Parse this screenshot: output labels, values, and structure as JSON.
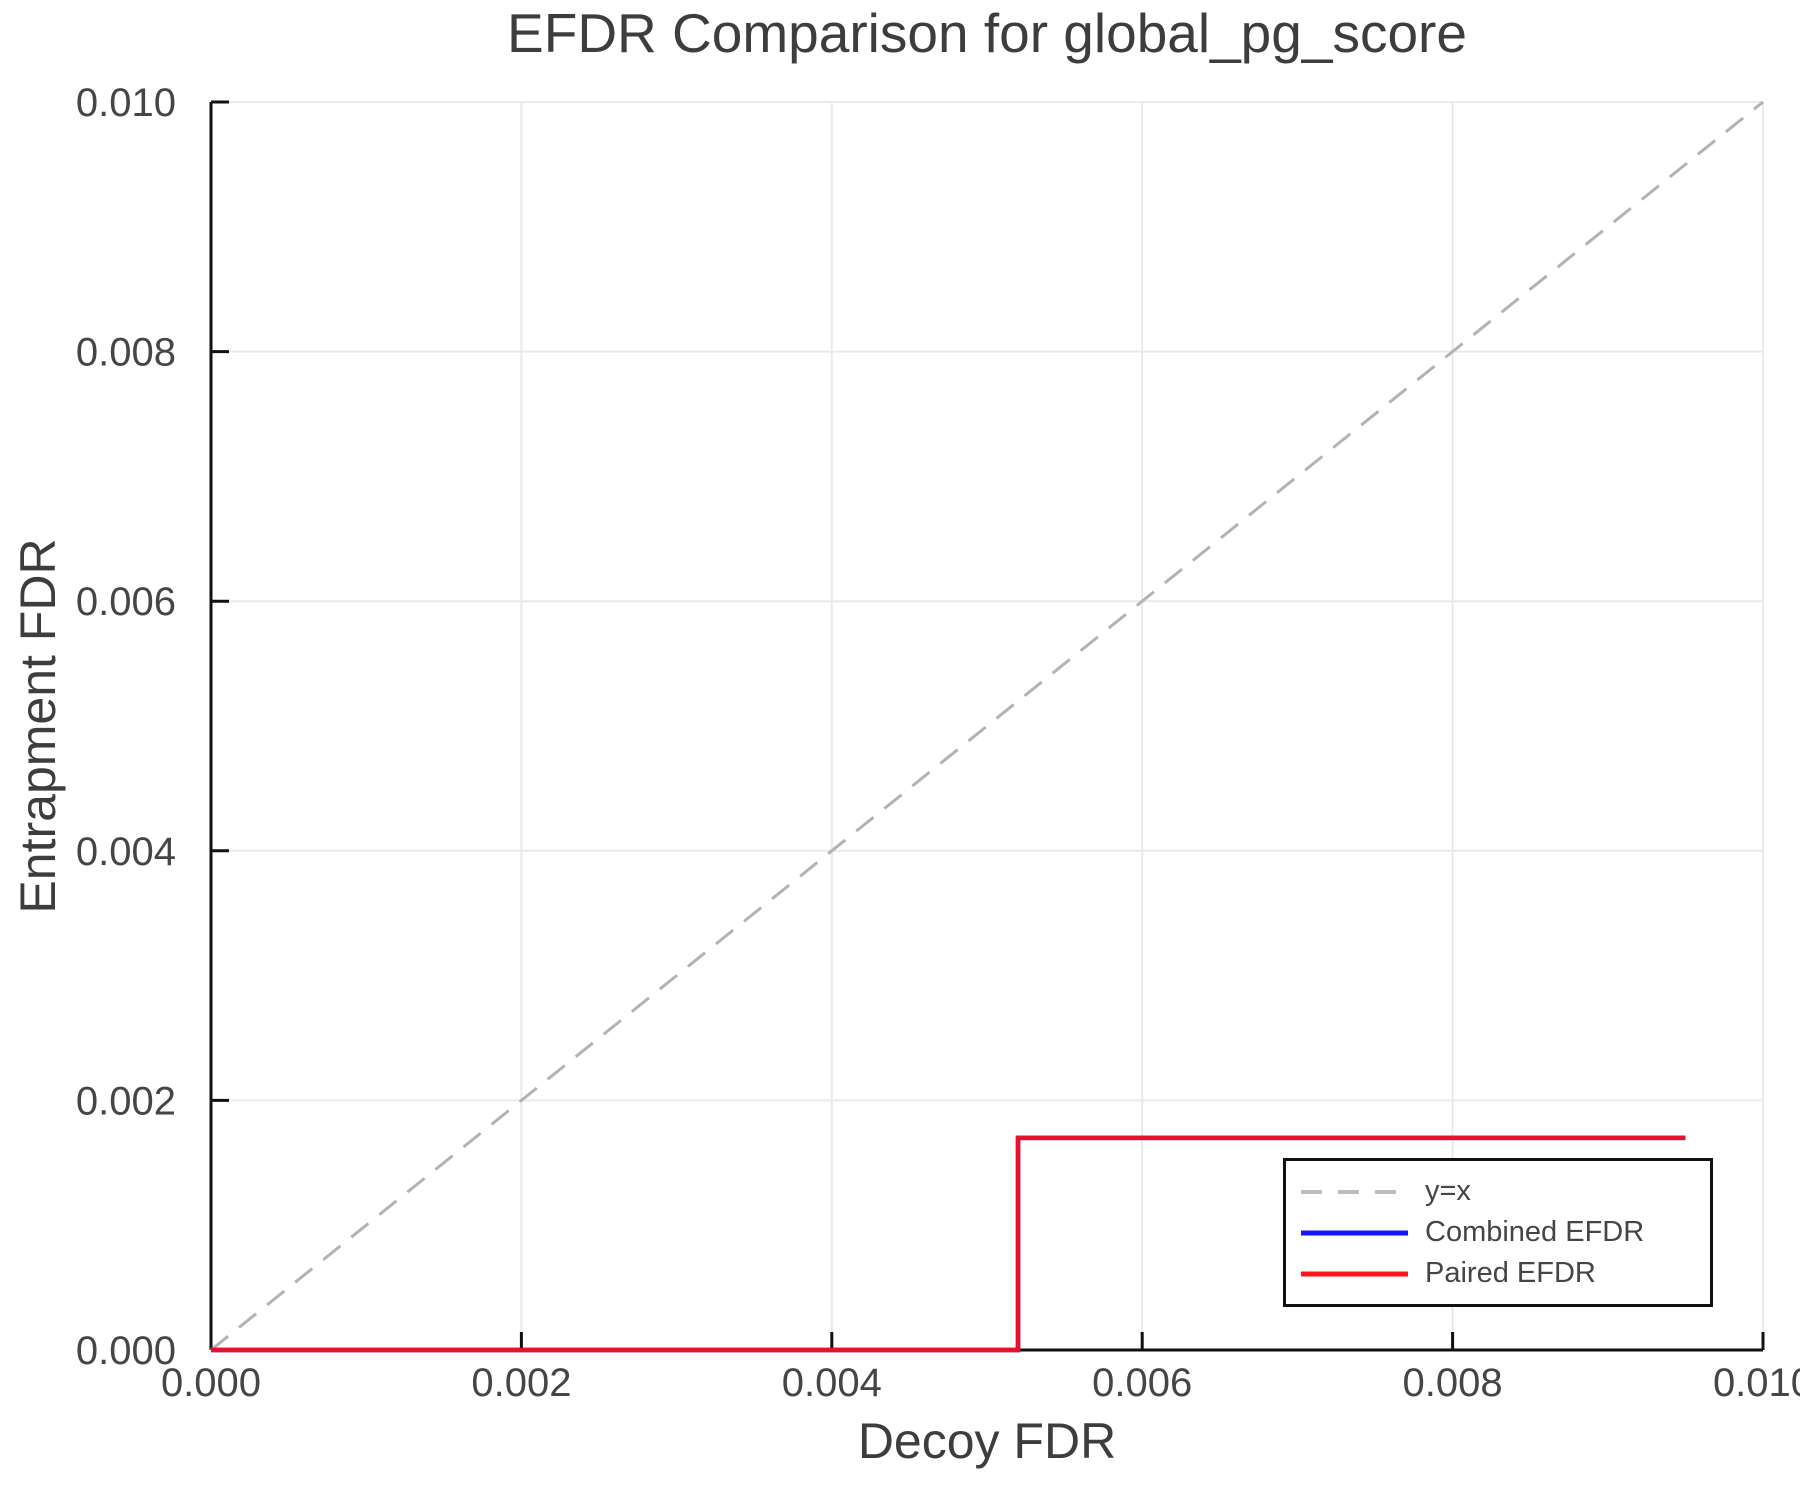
{
  "colors": {
    "background": "#ffffff",
    "spine": "#111111",
    "grid": "#eaeaea",
    "tick_text": "#454545",
    "title_text": "#3d3d3d",
    "legend_border": "#111111"
  },
  "legend": {
    "position": "lower right"
  },
  "chart_data": {
    "type": "line",
    "title": "EFDR Comparison for global_pg_score",
    "xlabel": "Decoy FDR",
    "ylabel": "Entrapment FDR",
    "xlim": [
      0.0,
      0.01
    ],
    "ylim": [
      0.0,
      0.01
    ],
    "xticks": [
      0.0,
      0.002,
      0.004,
      0.006,
      0.008,
      0.01
    ],
    "xtick_labels": [
      "0.000",
      "0.002",
      "0.004",
      "0.006",
      "0.008",
      "0.010"
    ],
    "yticks": [
      0.0,
      0.002,
      0.004,
      0.006,
      0.008,
      0.01
    ],
    "ytick_labels": [
      "0.000",
      "0.002",
      "0.004",
      "0.006",
      "0.008",
      "0.010"
    ],
    "grid": true,
    "legend_position": "lower right",
    "series": [
      {
        "name": "y=x",
        "color": "#b3b3b3",
        "swatch_color": "#bdbdbd",
        "dash": [
          22,
          14
        ],
        "width": 3,
        "points": [
          [
            0.0,
            0.0
          ],
          [
            0.01,
            0.01
          ]
        ]
      },
      {
        "name": "Combined EFDR",
        "color": "#1010ee",
        "swatch_color": "#1414ff",
        "dash": null,
        "width": 4.5,
        "points": [
          [
            0.0,
            0.0
          ],
          [
            0.0052,
            0.0
          ],
          [
            0.0052,
            0.0017
          ],
          [
            0.0095,
            0.0017
          ]
        ]
      },
      {
        "name": "Paired EFDR",
        "color": "#e8112c",
        "swatch_color": "#ff1515",
        "dash": null,
        "width": 4.5,
        "points": [
          [
            0.0,
            0.0
          ],
          [
            0.0052,
            0.0
          ],
          [
            0.0052,
            0.0017
          ],
          [
            0.0095,
            0.0017
          ]
        ]
      }
    ]
  }
}
